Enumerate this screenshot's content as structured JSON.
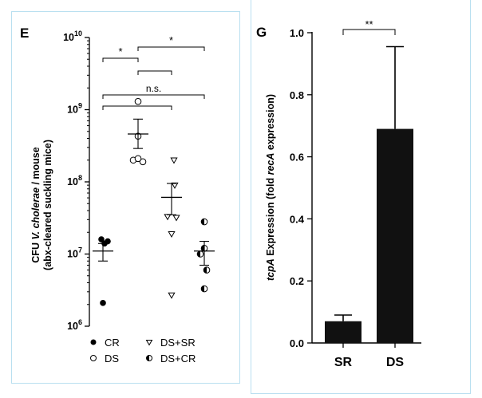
{
  "chart_data": [
    {
      "type": "scatter",
      "panel_letter": "E",
      "ylabel_parts": [
        "CFU ",
        "V. cholerae",
        " / mouse"
      ],
      "ylabel_line2": "(abx-cleared suckling mice)",
      "yscale": "log",
      "ylim": [
        1000000,
        10000000000
      ],
      "yticks": [
        {
          "exp": 6,
          "value": 1000000
        },
        {
          "exp": 7,
          "value": 10000000
        },
        {
          "exp": 8,
          "value": 100000000
        },
        {
          "exp": 9,
          "value": 1000000000
        },
        {
          "exp": 10,
          "value": 10000000000
        }
      ],
      "tick_base": "10",
      "groups": [
        {
          "name": "CR",
          "marker": "filled-circle",
          "points": [
            16000000,
            15000000,
            14000000,
            2100000
          ],
          "mean": 11000000,
          "sem_low": 8000000,
          "sem_high": 14000000
        },
        {
          "name": "DS",
          "marker": "open-circle",
          "points": [
            1300000000,
            430000000,
            200000000,
            190000000,
            210000000
          ],
          "mean": 460000000,
          "sem_low": 290000000,
          "sem_high": 740000000
        },
        {
          "name": "DS+SR",
          "marker": "open-triangle",
          "points": [
            200000000,
            90000000,
            33000000,
            32000000,
            19000000,
            2700000
          ],
          "mean": 61000000,
          "sem_low": 35000000,
          "sem_high": 95000000
        },
        {
          "name": "DS+CR",
          "marker": "half-circle",
          "points": [
            28000000,
            12000000,
            10000000,
            6000000,
            3300000
          ],
          "mean": 11000000,
          "sem_low": 7000000,
          "sem_high": 15000000
        }
      ],
      "significance": [
        {
          "label": "*",
          "from": "CR",
          "to": "DS"
        },
        {
          "label": "*",
          "from": "DS",
          "to": "DS+CR"
        },
        {
          "label": "",
          "from": "DS",
          "to": "DS+SR"
        },
        {
          "label": "n.s.",
          "from": "CR",
          "to": "DS+CR"
        },
        {
          "label": "",
          "from": "CR",
          "to": "DS+SR"
        }
      ]
    },
    {
      "type": "bar",
      "panel_letter": "G",
      "categories": [
        "SR",
        "DS"
      ],
      "values": [
        0.07,
        0.69
      ],
      "errors": [
        0.02,
        0.265
      ],
      "ylabel_parts": [
        "tcpA",
        " Expression (fold ",
        "recA",
        " expression)"
      ],
      "ylim": [
        0,
        1.0
      ],
      "yticks": [
        "0.0",
        "0.2",
        "0.4",
        "0.6",
        "0.8",
        "1.0"
      ],
      "significance": [
        {
          "label": "**",
          "from": "SR",
          "to": "DS"
        }
      ]
    }
  ]
}
